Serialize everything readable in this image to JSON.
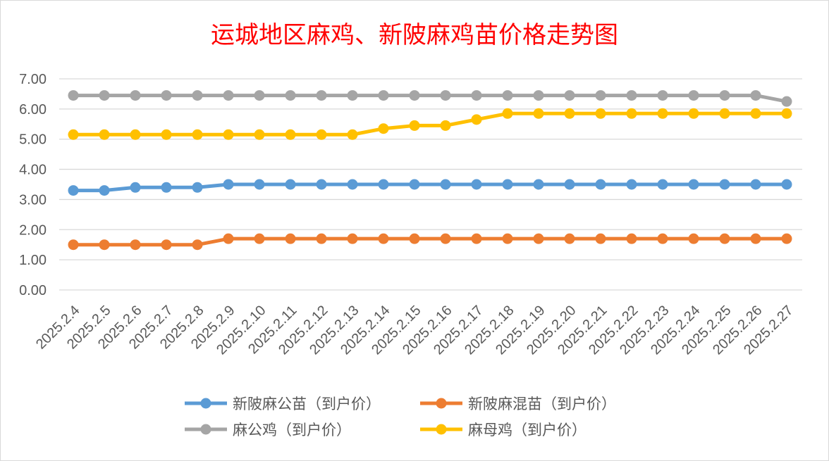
{
  "chart_data": {
    "type": "line",
    "title": "运城地区麻鸡、新陂麻鸡苗价格走势图",
    "categories": [
      "2025.2.4",
      "2025.2.5",
      "2025.2.6",
      "2025.2.7",
      "2025.2.8",
      "2025.2.9",
      "2025.2.10",
      "2025.2.11",
      "2025.2.12",
      "2025.2.13",
      "2025.2.14",
      "2025.2.15",
      "2025.2.16",
      "2025.2.17",
      "2025.2.18",
      "2025.2.19",
      "2025.2.20",
      "2025.2.21",
      "2025.2.22",
      "2025.2.23",
      "2025.2.24",
      "2025.2.25",
      "2025.2.26",
      "2025.2.27"
    ],
    "yticks": [
      "0.00",
      "1.00",
      "2.00",
      "3.00",
      "4.00",
      "5.00",
      "6.00",
      "7.00"
    ],
    "ylim": [
      0,
      7
    ],
    "grid": true,
    "legend_position": "bottom",
    "series": [
      {
        "name": "新陂麻公苗（到户价）",
        "color": "#5b9bd5",
        "values": [
          3.3,
          3.3,
          3.4,
          3.4,
          3.4,
          3.5,
          3.5,
          3.5,
          3.5,
          3.5,
          3.5,
          3.5,
          3.5,
          3.5,
          3.5,
          3.5,
          3.5,
          3.5,
          3.5,
          3.5,
          3.5,
          3.5,
          3.5,
          3.5
        ]
      },
      {
        "name": "新陂麻混苗（到户价）",
        "color": "#ed7d31",
        "values": [
          1.5,
          1.5,
          1.5,
          1.5,
          1.5,
          1.7,
          1.7,
          1.7,
          1.7,
          1.7,
          1.7,
          1.7,
          1.7,
          1.7,
          1.7,
          1.7,
          1.7,
          1.7,
          1.7,
          1.7,
          1.7,
          1.7,
          1.7,
          1.7
        ]
      },
      {
        "name": "麻公鸡（到户价）",
        "color": "#a5a5a5",
        "values": [
          6.45,
          6.45,
          6.45,
          6.45,
          6.45,
          6.45,
          6.45,
          6.45,
          6.45,
          6.45,
          6.45,
          6.45,
          6.45,
          6.45,
          6.45,
          6.45,
          6.45,
          6.45,
          6.45,
          6.45,
          6.45,
          6.45,
          6.45,
          6.25
        ]
      },
      {
        "name": "麻母鸡（到户价）",
        "color": "#ffc000",
        "values": [
          5.15,
          5.15,
          5.15,
          5.15,
          5.15,
          5.15,
          5.15,
          5.15,
          5.15,
          5.15,
          5.35,
          5.45,
          5.45,
          5.65,
          5.85,
          5.85,
          5.85,
          5.85,
          5.85,
          5.85,
          5.85,
          5.85,
          5.85,
          5.85
        ]
      }
    ]
  }
}
